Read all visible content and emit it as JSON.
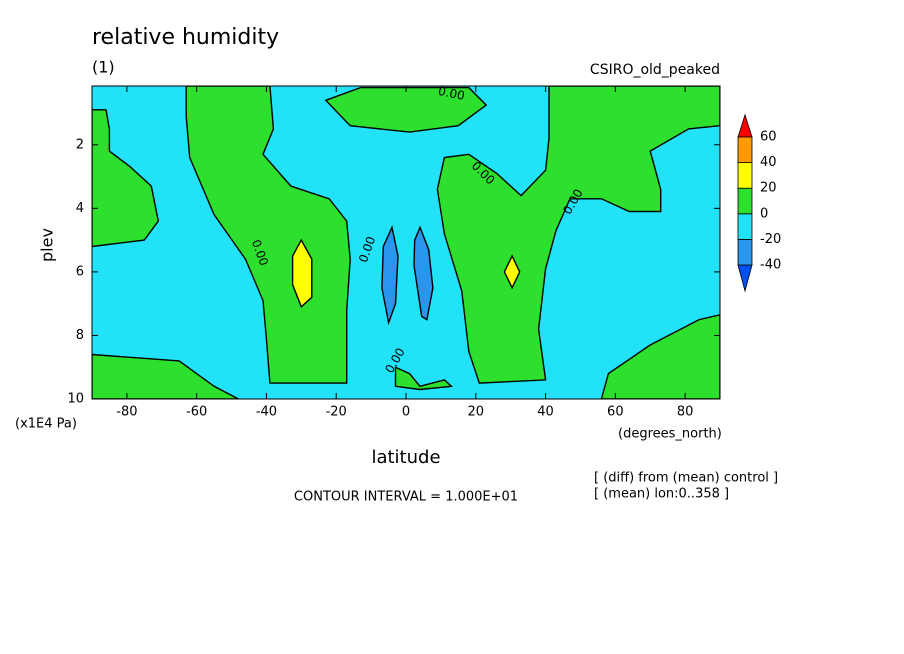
{
  "chart_data": {
    "type": "contour",
    "title": "relative humidity",
    "subtitle": "(1)",
    "dataset": "CSIRO_old_peaked",
    "xlabel": "latitude",
    "xunit": "(degrees_north)",
    "ylabel": "plev",
    "yunit": "(x1E4 Pa)",
    "xlim": [
      -90,
      90
    ],
    "ylim": [
      10,
      0.15
    ],
    "xticks": [
      -80,
      -60,
      -40,
      -20,
      0,
      20,
      40,
      60,
      80
    ],
    "yticks": [
      2,
      4,
      6,
      8,
      10
    ],
    "contour_interval": "CONTOUR INTERVAL = 1.000E+01",
    "notes": [
      "[ (diff) from (mean) control ]",
      "[ (mean) lon:0..358 ]"
    ],
    "colorbar": {
      "levels": [
        -40,
        -20,
        0,
        20,
        40,
        60
      ],
      "colors": [
        "#0050f0",
        "#2a95ec",
        "#22e2f8",
        "#2ee02e",
        "#ffff00",
        "#ff9a00",
        "#ff0000"
      ]
    },
    "regions": [
      {
        "level": -20,
        "points": [
          [
            -90,
            10
          ],
          [
            90,
            10
          ],
          [
            90,
            0.15
          ],
          [
            -90,
            0.15
          ]
        ]
      },
      {
        "level": 0,
        "points": [
          [
            -63,
            0.15
          ],
          [
            -39,
            0.15
          ],
          [
            -38,
            1.5
          ],
          [
            -41,
            2.3
          ],
          [
            -33,
            3.3
          ],
          [
            -22,
            3.7
          ],
          [
            -17,
            4.4
          ],
          [
            -16,
            5.6
          ],
          [
            -17,
            7.2
          ],
          [
            -17,
            9.5
          ],
          [
            -39,
            9.5
          ],
          [
            -40,
            8.1
          ],
          [
            -41,
            6.9
          ],
          [
            -46,
            5.6
          ],
          [
            -55,
            4.2
          ],
          [
            -62,
            2.4
          ],
          [
            -63,
            1.1
          ]
        ]
      },
      {
        "level": 0,
        "points": [
          [
            41,
            0.15
          ],
          [
            90,
            0.15
          ],
          [
            90,
            1.4
          ],
          [
            81,
            1.5
          ],
          [
            70,
            2.2
          ],
          [
            73,
            3.4
          ],
          [
            73,
            4.1
          ],
          [
            64,
            4.1
          ],
          [
            56,
            3.7
          ],
          [
            47,
            3.7
          ],
          [
            43,
            4.7
          ],
          [
            40,
            5.9
          ],
          [
            38,
            7.8
          ],
          [
            40,
            9.4
          ],
          [
            21,
            9.5
          ],
          [
            18,
            8.5
          ],
          [
            16,
            6.6
          ],
          [
            11,
            4.8
          ],
          [
            9,
            3.4
          ],
          [
            11,
            2.4
          ],
          [
            18,
            2.3
          ],
          [
            26,
            2.9
          ],
          [
            33,
            3.6
          ],
          [
            40,
            2.8
          ],
          [
            41,
            1.8
          ]
        ]
      },
      {
        "level": 0,
        "points": [
          [
            -90,
            0.9
          ],
          [
            -86,
            0.9
          ],
          [
            -85,
            1.5
          ],
          [
            -85,
            2.2
          ],
          [
            -79,
            2.7
          ],
          [
            -73,
            3.3
          ],
          [
            -71,
            4.4
          ],
          [
            -75,
            5
          ],
          [
            -90,
            5.2
          ]
        ]
      },
      {
        "level": 0,
        "points": [
          [
            -90,
            8.6
          ],
          [
            -65,
            8.8
          ],
          [
            -55,
            9.6
          ],
          [
            -48,
            10
          ],
          [
            -90,
            10
          ]
        ]
      },
      {
        "level": 0,
        "points": [
          [
            56,
            10
          ],
          [
            58,
            9.2
          ],
          [
            70,
            8.3
          ],
          [
            84,
            7.5
          ],
          [
            90,
            7.35
          ],
          [
            90,
            10
          ]
        ]
      },
      {
        "level": 0,
        "points": [
          [
            -23,
            0.6
          ],
          [
            -13,
            0.2
          ],
          [
            18,
            0.2
          ],
          [
            23,
            0.75
          ],
          [
            15,
            1.4
          ],
          [
            1,
            1.6
          ],
          [
            -16,
            1.4
          ]
        ]
      },
      {
        "level": 0,
        "points": [
          [
            -3,
            9
          ],
          [
            1,
            9.2
          ],
          [
            4,
            9.6
          ],
          [
            11,
            9.4
          ],
          [
            13,
            9.6
          ],
          [
            4,
            9.7
          ],
          [
            -3,
            9.6
          ]
        ]
      },
      {
        "level": 20,
        "points": [
          [
            -30,
            5
          ],
          [
            -27,
            5.6
          ],
          [
            -27,
            6.8
          ],
          [
            -30,
            7.1
          ],
          [
            -32.5,
            6.4
          ],
          [
            -32.5,
            5.5
          ]
        ]
      },
      {
        "level": 20,
        "points": [
          [
            30.4,
            5.5
          ],
          [
            32.6,
            6
          ],
          [
            30.4,
            6.5
          ],
          [
            28.2,
            6
          ]
        ]
      },
      {
        "level": -40,
        "points": [
          [
            -4,
            4.6
          ],
          [
            -2.3,
            5.5
          ],
          [
            -3,
            7
          ],
          [
            -5,
            7.6
          ],
          [
            -6.9,
            6.5
          ],
          [
            -6.5,
            5.2
          ]
        ]
      },
      {
        "level": -40,
        "points": [
          [
            4,
            4.6
          ],
          [
            6.5,
            5.3
          ],
          [
            7.7,
            6.5
          ],
          [
            6,
            7.5
          ],
          [
            4.5,
            7.4
          ],
          [
            2.3,
            5.8
          ],
          [
            2.5,
            5
          ]
        ]
      }
    ],
    "contour_labels": [
      {
        "value": 0,
        "label": "0.00",
        "at": [
          13,
          0.4
        ]
      },
      {
        "value": 0,
        "label": "0.00",
        "at": [
          22,
          2.9
        ]
      },
      {
        "value": 0,
        "label": "0.00",
        "at": [
          48,
          3.8
        ]
      },
      {
        "value": 0,
        "label": "0.00",
        "at": [
          -42,
          5.4
        ]
      },
      {
        "value": 0,
        "label": "0.00",
        "at": [
          -11,
          5.3
        ]
      },
      {
        "value": 0,
        "label": "0.00",
        "at": [
          -3,
          8.8
        ]
      }
    ]
  }
}
